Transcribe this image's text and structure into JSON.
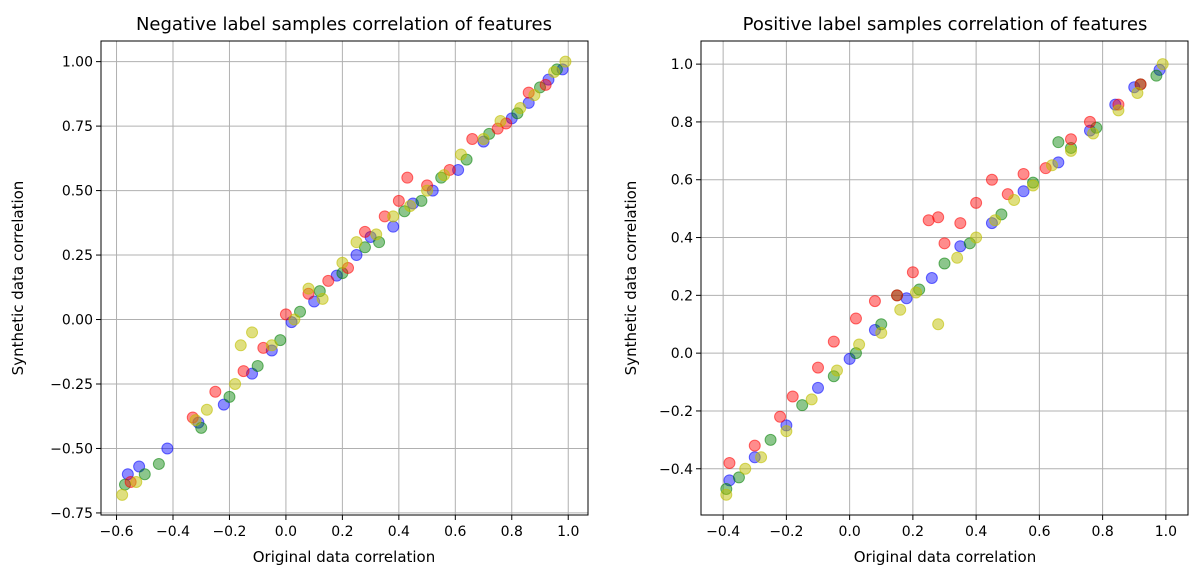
{
  "chart_data": [
    {
      "type": "scatter",
      "title": "Negative label samples correlation of features",
      "xlabel": "Original data correlation",
      "ylabel": "Synthetic data correlation",
      "xlim": [
        -0.655,
        1.07
      ],
      "ylim": [
        -0.758,
        1.08
      ],
      "xticks": [
        -0.6,
        -0.4,
        -0.2,
        0.0,
        0.2,
        0.4,
        0.6,
        0.8,
        1.0
      ],
      "xtick_labels": [
        "−0.6",
        "−0.4",
        "−0.2",
        "0.0",
        "0.2",
        "0.4",
        "0.6",
        "0.8",
        "1.0"
      ],
      "yticks": [
        -0.75,
        -0.5,
        -0.25,
        0.0,
        0.25,
        0.5,
        0.75,
        1.0
      ],
      "ytick_labels": [
        "−0.75",
        "−0.50",
        "−0.25",
        "0.00",
        "0.25",
        "0.50",
        "0.75",
        "1.00"
      ],
      "grid": true,
      "series": [
        {
          "color": "#0000ff",
          "alpha": 0.45,
          "points": [
            [
              -0.56,
              -0.6
            ],
            [
              -0.52,
              -0.57
            ],
            [
              -0.42,
              -0.5
            ],
            [
              -0.31,
              -0.4
            ],
            [
              -0.22,
              -0.33
            ],
            [
              -0.12,
              -0.21
            ],
            [
              -0.05,
              -0.12
            ],
            [
              0.02,
              -0.01
            ],
            [
              0.1,
              0.07
            ],
            [
              0.18,
              0.17
            ],
            [
              0.25,
              0.25
            ],
            [
              0.3,
              0.32
            ],
            [
              0.38,
              0.36
            ],
            [
              0.45,
              0.45
            ],
            [
              0.52,
              0.5
            ],
            [
              0.61,
              0.58
            ],
            [
              0.7,
              0.69
            ],
            [
              0.8,
              0.78
            ],
            [
              0.86,
              0.84
            ],
            [
              0.93,
              0.93
            ],
            [
              0.98,
              0.97
            ]
          ]
        },
        {
          "color": "#008000",
          "alpha": 0.45,
          "points": [
            [
              -0.57,
              -0.64
            ],
            [
              -0.5,
              -0.6
            ],
            [
              -0.45,
              -0.56
            ],
            [
              -0.3,
              -0.42
            ],
            [
              -0.2,
              -0.3
            ],
            [
              -0.1,
              -0.18
            ],
            [
              -0.02,
              -0.08
            ],
            [
              0.05,
              0.03
            ],
            [
              0.12,
              0.11
            ],
            [
              0.2,
              0.18
            ],
            [
              0.28,
              0.28
            ],
            [
              0.33,
              0.3
            ],
            [
              0.42,
              0.42
            ],
            [
              0.48,
              0.46
            ],
            [
              0.55,
              0.55
            ],
            [
              0.64,
              0.62
            ],
            [
              0.72,
              0.72
            ],
            [
              0.82,
              0.8
            ],
            [
              0.9,
              0.9
            ],
            [
              0.96,
              0.97
            ]
          ]
        },
        {
          "color": "#ff0000",
          "alpha": 0.45,
          "points": [
            [
              -0.55,
              -0.63
            ],
            [
              -0.33,
              -0.38
            ],
            [
              -0.25,
              -0.28
            ],
            [
              -0.15,
              -0.2
            ],
            [
              -0.08,
              -0.11
            ],
            [
              0.0,
              0.02
            ],
            [
              0.08,
              0.1
            ],
            [
              0.15,
              0.15
            ],
            [
              0.22,
              0.2
            ],
            [
              0.28,
              0.34
            ],
            [
              0.35,
              0.4
            ],
            [
              0.4,
              0.46
            ],
            [
              0.43,
              0.55
            ],
            [
              0.5,
              0.52
            ],
            [
              0.58,
              0.58
            ],
            [
              0.66,
              0.7
            ],
            [
              0.75,
              0.74
            ],
            [
              0.78,
              0.76
            ],
            [
              0.86,
              0.88
            ],
            [
              0.92,
              0.91
            ]
          ]
        },
        {
          "color": "#bfbf00",
          "alpha": 0.5,
          "points": [
            [
              -0.58,
              -0.68
            ],
            [
              -0.53,
              -0.63
            ],
            [
              -0.32,
              -0.39
            ],
            [
              -0.28,
              -0.35
            ],
            [
              -0.18,
              -0.25
            ],
            [
              -0.16,
              -0.1
            ],
            [
              -0.12,
              -0.05
            ],
            [
              -0.05,
              -0.1
            ],
            [
              0.03,
              0.0
            ],
            [
              0.08,
              0.12
            ],
            [
              0.13,
              0.08
            ],
            [
              0.2,
              0.22
            ],
            [
              0.25,
              0.3
            ],
            [
              0.32,
              0.33
            ],
            [
              0.38,
              0.4
            ],
            [
              0.44,
              0.44
            ],
            [
              0.5,
              0.5
            ],
            [
              0.56,
              0.56
            ],
            [
              0.62,
              0.64
            ],
            [
              0.7,
              0.7
            ],
            [
              0.76,
              0.77
            ],
            [
              0.83,
              0.82
            ],
            [
              0.88,
              0.87
            ],
            [
              0.95,
              0.96
            ],
            [
              0.99,
              1.0
            ]
          ]
        }
      ]
    },
    {
      "type": "scatter",
      "title": "Positive label samples correlation of features",
      "xlabel": "Original data correlation",
      "ylabel": "Synthetic data correlation",
      "xlim": [
        -0.47,
        1.07
      ],
      "ylim": [
        -0.56,
        1.08
      ],
      "xticks": [
        -0.4,
        -0.2,
        0.0,
        0.2,
        0.4,
        0.6,
        0.8,
        1.0
      ],
      "xtick_labels": [
        "−0.4",
        "−0.2",
        "0.0",
        "0.2",
        "0.4",
        "0.6",
        "0.8",
        "1.0"
      ],
      "yticks": [
        -0.4,
        -0.2,
        0.0,
        0.2,
        0.4,
        0.6,
        0.8,
        1.0
      ],
      "ytick_labels": [
        "−0.4",
        "−0.2",
        "0.0",
        "0.2",
        "0.4",
        "0.6",
        "0.8",
        "1.0"
      ],
      "grid": true,
      "series": [
        {
          "color": "#0000ff",
          "alpha": 0.45,
          "points": [
            [
              -0.38,
              -0.44
            ],
            [
              -0.3,
              -0.36
            ],
            [
              -0.2,
              -0.25
            ],
            [
              -0.1,
              -0.12
            ],
            [
              0.0,
              -0.02
            ],
            [
              0.08,
              0.08
            ],
            [
              0.18,
              0.19
            ],
            [
              0.26,
              0.26
            ],
            [
              0.35,
              0.37
            ],
            [
              0.45,
              0.45
            ],
            [
              0.55,
              0.56
            ],
            [
              0.66,
              0.66
            ],
            [
              0.76,
              0.77
            ],
            [
              0.84,
              0.86
            ],
            [
              0.9,
              0.92
            ],
            [
              0.98,
              0.98
            ]
          ]
        },
        {
          "color": "#008000",
          "alpha": 0.45,
          "points": [
            [
              -0.39,
              -0.47
            ],
            [
              -0.35,
              -0.43
            ],
            [
              -0.25,
              -0.3
            ],
            [
              -0.15,
              -0.18
            ],
            [
              -0.05,
              -0.08
            ],
            [
              0.02,
              0.0
            ],
            [
              0.1,
              0.1
            ],
            [
              0.15,
              0.2
            ],
            [
              0.22,
              0.22
            ],
            [
              0.3,
              0.31
            ],
            [
              0.38,
              0.38
            ],
            [
              0.48,
              0.48
            ],
            [
              0.58,
              0.59
            ],
            [
              0.66,
              0.73
            ],
            [
              0.7,
              0.71
            ],
            [
              0.78,
              0.78
            ],
            [
              0.92,
              0.93
            ],
            [
              0.97,
              0.96
            ]
          ]
        },
        {
          "color": "#ff0000",
          "alpha": 0.45,
          "points": [
            [
              -0.38,
              -0.38
            ],
            [
              -0.3,
              -0.32
            ],
            [
              -0.22,
              -0.22
            ],
            [
              -0.18,
              -0.15
            ],
            [
              -0.1,
              -0.05
            ],
            [
              -0.05,
              0.04
            ],
            [
              0.02,
              0.12
            ],
            [
              0.08,
              0.18
            ],
            [
              0.15,
              0.2
            ],
            [
              0.2,
              0.28
            ],
            [
              0.25,
              0.46
            ],
            [
              0.28,
              0.47
            ],
            [
              0.3,
              0.38
            ],
            [
              0.35,
              0.45
            ],
            [
              0.4,
              0.52
            ],
            [
              0.45,
              0.6
            ],
            [
              0.5,
              0.55
            ],
            [
              0.55,
              0.62
            ],
            [
              0.62,
              0.64
            ],
            [
              0.7,
              0.74
            ],
            [
              0.76,
              0.8
            ],
            [
              0.85,
              0.86
            ],
            [
              0.92,
              0.93
            ]
          ]
        },
        {
          "color": "#bfbf00",
          "alpha": 0.5,
          "points": [
            [
              -0.39,
              -0.49
            ],
            [
              -0.33,
              -0.4
            ],
            [
              -0.28,
              -0.36
            ],
            [
              -0.2,
              -0.27
            ],
            [
              -0.12,
              -0.16
            ],
            [
              -0.04,
              -0.06
            ],
            [
              0.03,
              0.03
            ],
            [
              0.1,
              0.07
            ],
            [
              0.16,
              0.15
            ],
            [
              0.21,
              0.21
            ],
            [
              0.28,
              0.1
            ],
            [
              0.34,
              0.33
            ],
            [
              0.4,
              0.4
            ],
            [
              0.46,
              0.46
            ],
            [
              0.52,
              0.53
            ],
            [
              0.58,
              0.58
            ],
            [
              0.64,
              0.65
            ],
            [
              0.7,
              0.7
            ],
            [
              0.77,
              0.76
            ],
            [
              0.85,
              0.84
            ],
            [
              0.91,
              0.9
            ],
            [
              0.99,
              1.0
            ]
          ]
        }
      ]
    }
  ]
}
